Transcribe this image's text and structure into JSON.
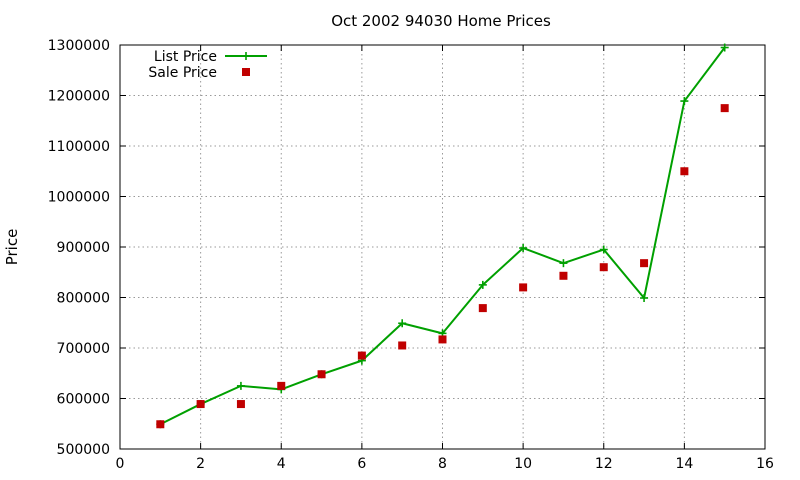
{
  "chart_data": {
    "type": "line",
    "title": "Oct 2002 94030 Home Prices",
    "xlabel": "",
    "ylabel": "Price",
    "xlim": [
      0,
      16
    ],
    "ylim": [
      500000,
      1300000
    ],
    "x_ticks": [
      "0",
      "2",
      "4",
      "6",
      "8",
      "10",
      "12",
      "14",
      "16"
    ],
    "y_ticks": [
      "500000",
      "600000",
      "700000",
      "800000",
      "900000",
      "1000000",
      "1100000",
      "1200000",
      "1300000"
    ],
    "grid": true,
    "legend_position": "top-left",
    "series": [
      {
        "name": "List Price",
        "style": "lines+points",
        "marker": "plus",
        "color": "#00a000",
        "x": [
          1,
          2,
          3,
          4,
          5,
          6,
          7,
          8,
          9,
          10,
          11,
          12,
          13,
          14,
          15
        ],
        "values": [
          549000,
          589000,
          625000,
          618000,
          648000,
          675000,
          749000,
          729000,
          825000,
          898000,
          868000,
          895000,
          799000,
          1189000,
          1295000
        ]
      },
      {
        "name": "Sale Price",
        "style": "points",
        "marker": "square",
        "color": "#c00000",
        "x": [
          1,
          2,
          3,
          4,
          5,
          6,
          7,
          8,
          9,
          10,
          11,
          12,
          13,
          14,
          15
        ],
        "values": [
          549000,
          589000,
          589000,
          625000,
          648000,
          685000,
          705000,
          717000,
          779000,
          820000,
          843000,
          860000,
          868000,
          1050000,
          1175000
        ]
      }
    ]
  }
}
